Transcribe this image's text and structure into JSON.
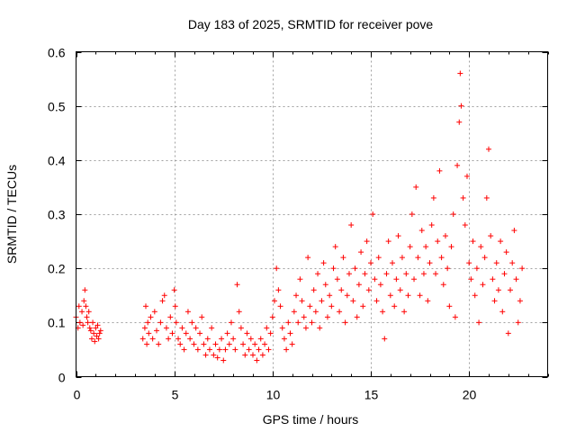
{
  "chart_data": {
    "type": "scatter",
    "title": "Day 183 of 2025, SRMTID for receiver pove",
    "xlabel": "GPS time / hours",
    "ylabel": "SRMTID / TECUs",
    "xlim": [
      0,
      24
    ],
    "ylim": [
      0,
      0.6
    ],
    "xticks": [
      0,
      5,
      10,
      15,
      20
    ],
    "yticks": [
      0,
      0.1,
      0.2,
      0.3,
      0.4,
      0.5,
      0.6
    ],
    "xtick_labels": [
      "0",
      "5",
      "10",
      "15",
      "20"
    ],
    "ytick_labels": [
      "0",
      "0.1",
      "0.2",
      "0.3",
      "0.4",
      "0.5",
      "0.6"
    ],
    "grid": true,
    "marker": "+",
    "series_color": "#ff0000",
    "series": [
      {
        "name": "SRMTID",
        "points": [
          [
            0.0,
            0.11
          ],
          [
            0.1,
            0.09
          ],
          [
            0.15,
            0.13
          ],
          [
            0.2,
            0.1
          ],
          [
            0.3,
            0.12
          ],
          [
            0.35,
            0.095
          ],
          [
            0.4,
            0.14
          ],
          [
            0.45,
            0.16
          ],
          [
            0.5,
            0.13
          ],
          [
            0.55,
            0.11
          ],
          [
            0.6,
            0.1
          ],
          [
            0.65,
            0.12
          ],
          [
            0.7,
            0.09
          ],
          [
            0.75,
            0.085
          ],
          [
            0.8,
            0.07
          ],
          [
            0.85,
            0.1
          ],
          [
            0.9,
            0.08
          ],
          [
            0.95,
            0.065
          ],
          [
            1.0,
            0.09
          ],
          [
            1.05,
            0.075
          ],
          [
            1.1,
            0.095
          ],
          [
            1.15,
            0.07
          ],
          [
            1.2,
            0.08
          ],
          [
            1.25,
            0.085
          ],
          [
            3.4,
            0.07
          ],
          [
            3.5,
            0.09
          ],
          [
            3.55,
            0.13
          ],
          [
            3.6,
            0.06
          ],
          [
            3.65,
            0.1
          ],
          [
            3.7,
            0.08
          ],
          [
            3.8,
            0.11
          ],
          [
            3.9,
            0.07
          ],
          [
            4.0,
            0.12
          ],
          [
            4.1,
            0.085
          ],
          [
            4.2,
            0.06
          ],
          [
            4.3,
            0.1
          ],
          [
            4.4,
            0.14
          ],
          [
            4.5,
            0.15
          ],
          [
            4.6,
            0.09
          ],
          [
            4.7,
            0.07
          ],
          [
            4.8,
            0.11
          ],
          [
            4.9,
            0.08
          ],
          [
            5.0,
            0.16
          ],
          [
            5.05,
            0.13
          ],
          [
            5.1,
            0.1
          ],
          [
            5.2,
            0.07
          ],
          [
            5.3,
            0.06
          ],
          [
            5.4,
            0.09
          ],
          [
            5.5,
            0.05
          ],
          [
            5.6,
            0.08
          ],
          [
            5.7,
            0.12
          ],
          [
            5.8,
            0.07
          ],
          [
            5.9,
            0.1
          ],
          [
            6.0,
            0.06
          ],
          [
            6.1,
            0.09
          ],
          [
            6.2,
            0.05
          ],
          [
            6.3,
            0.08
          ],
          [
            6.4,
            0.11
          ],
          [
            6.5,
            0.06
          ],
          [
            6.6,
            0.04
          ],
          [
            6.7,
            0.07
          ],
          [
            6.8,
            0.05
          ],
          [
            6.9,
            0.09
          ],
          [
            7.0,
            0.04
          ],
          [
            7.1,
            0.06
          ],
          [
            7.2,
            0.035
          ],
          [
            7.3,
            0.05
          ],
          [
            7.4,
            0.07
          ],
          [
            7.5,
            0.03
          ],
          [
            7.6,
            0.05
          ],
          [
            7.7,
            0.08
          ],
          [
            7.8,
            0.06
          ],
          [
            7.9,
            0.1
          ],
          [
            8.0,
            0.07
          ],
          [
            8.1,
            0.05
          ],
          [
            8.2,
            0.17
          ],
          [
            8.3,
            0.12
          ],
          [
            8.4,
            0.09
          ],
          [
            8.5,
            0.06
          ],
          [
            8.6,
            0.04
          ],
          [
            8.7,
            0.08
          ],
          [
            8.8,
            0.05
          ],
          [
            8.9,
            0.07
          ],
          [
            9.0,
            0.04
          ],
          [
            9.1,
            0.06
          ],
          [
            9.2,
            0.03
          ],
          [
            9.3,
            0.05
          ],
          [
            9.4,
            0.07
          ],
          [
            9.5,
            0.04
          ],
          [
            9.6,
            0.06
          ],
          [
            9.7,
            0.09
          ],
          [
            9.8,
            0.05
          ],
          [
            9.9,
            0.08
          ],
          [
            10.0,
            0.11
          ],
          [
            10.1,
            0.14
          ],
          [
            10.2,
            0.2
          ],
          [
            10.3,
            0.16
          ],
          [
            10.4,
            0.13
          ],
          [
            10.5,
            0.09
          ],
          [
            10.6,
            0.07
          ],
          [
            10.7,
            0.05
          ],
          [
            10.8,
            0.1
          ],
          [
            10.9,
            0.08
          ],
          [
            11.0,
            0.06
          ],
          [
            11.1,
            0.12
          ],
          [
            11.2,
            0.15
          ],
          [
            11.3,
            0.1
          ],
          [
            11.4,
            0.18
          ],
          [
            11.5,
            0.14
          ],
          [
            11.6,
            0.11
          ],
          [
            11.7,
            0.09
          ],
          [
            11.8,
            0.22
          ],
          [
            11.9,
            0.13
          ],
          [
            12.0,
            0.1
          ],
          [
            12.1,
            0.16
          ],
          [
            12.2,
            0.12
          ],
          [
            12.3,
            0.19
          ],
          [
            12.4,
            0.09
          ],
          [
            12.5,
            0.14
          ],
          [
            12.6,
            0.21
          ],
          [
            12.7,
            0.17
          ],
          [
            12.8,
            0.11
          ],
          [
            12.9,
            0.15
          ],
          [
            13.0,
            0.13
          ],
          [
            13.1,
            0.2
          ],
          [
            13.2,
            0.24
          ],
          [
            13.3,
            0.18
          ],
          [
            13.4,
            0.12
          ],
          [
            13.5,
            0.16
          ],
          [
            13.6,
            0.22
          ],
          [
            13.7,
            0.1
          ],
          [
            13.8,
            0.15
          ],
          [
            13.9,
            0.19
          ],
          [
            14.0,
            0.28
          ],
          [
            14.1,
            0.14
          ],
          [
            14.2,
            0.2
          ],
          [
            14.3,
            0.11
          ],
          [
            14.4,
            0.17
          ],
          [
            14.5,
            0.23
          ],
          [
            14.6,
            0.13
          ],
          [
            14.7,
            0.19
          ],
          [
            14.8,
            0.25
          ],
          [
            14.9,
            0.16
          ],
          [
            15.0,
            0.21
          ],
          [
            15.1,
            0.3
          ],
          [
            15.2,
            0.18
          ],
          [
            15.3,
            0.14
          ],
          [
            15.4,
            0.22
          ],
          [
            15.5,
            0.17
          ],
          [
            15.6,
            0.12
          ],
          [
            15.7,
            0.07
          ],
          [
            15.8,
            0.19
          ],
          [
            15.9,
            0.25
          ],
          [
            16.0,
            0.15
          ],
          [
            16.1,
            0.21
          ],
          [
            16.2,
            0.13
          ],
          [
            16.3,
            0.18
          ],
          [
            16.4,
            0.26
          ],
          [
            16.5,
            0.16
          ],
          [
            16.6,
            0.22
          ],
          [
            16.7,
            0.12
          ],
          [
            16.8,
            0.19
          ],
          [
            16.9,
            0.15
          ],
          [
            17.0,
            0.24
          ],
          [
            17.1,
            0.3
          ],
          [
            17.2,
            0.18
          ],
          [
            17.3,
            0.35
          ],
          [
            17.4,
            0.22
          ],
          [
            17.5,
            0.15
          ],
          [
            17.6,
            0.27
          ],
          [
            17.7,
            0.19
          ],
          [
            17.8,
            0.24
          ],
          [
            17.9,
            0.14
          ],
          [
            18.0,
            0.21
          ],
          [
            18.1,
            0.28
          ],
          [
            18.2,
            0.33
          ],
          [
            18.3,
            0.19
          ],
          [
            18.4,
            0.25
          ],
          [
            18.5,
            0.38
          ],
          [
            18.6,
            0.22
          ],
          [
            18.7,
            0.17
          ],
          [
            18.8,
            0.26
          ],
          [
            18.9,
            0.2
          ],
          [
            19.0,
            0.13
          ],
          [
            19.1,
            0.24
          ],
          [
            19.2,
            0.3
          ],
          [
            19.3,
            0.11
          ],
          [
            19.4,
            0.39
          ],
          [
            19.5,
            0.47
          ],
          [
            19.55,
            0.56
          ],
          [
            19.6,
            0.5
          ],
          [
            19.7,
            0.33
          ],
          [
            19.8,
            0.28
          ],
          [
            19.9,
            0.37
          ],
          [
            20.0,
            0.21
          ],
          [
            20.1,
            0.18
          ],
          [
            20.2,
            0.25
          ],
          [
            20.3,
            0.15
          ],
          [
            20.4,
            0.2
          ],
          [
            20.5,
            0.1
          ],
          [
            20.6,
            0.24
          ],
          [
            20.7,
            0.17
          ],
          [
            20.8,
            0.22
          ],
          [
            20.9,
            0.33
          ],
          [
            21.0,
            0.42
          ],
          [
            21.1,
            0.26
          ],
          [
            21.2,
            0.18
          ],
          [
            21.3,
            0.14
          ],
          [
            21.4,
            0.21
          ],
          [
            21.5,
            0.16
          ],
          [
            21.6,
            0.25
          ],
          [
            21.7,
            0.12
          ],
          [
            21.8,
            0.19
          ],
          [
            21.9,
            0.23
          ],
          [
            22.0,
            0.08
          ],
          [
            22.1,
            0.16
          ],
          [
            22.2,
            0.21
          ],
          [
            22.3,
            0.27
          ],
          [
            22.4,
            0.18
          ],
          [
            22.5,
            0.1
          ],
          [
            22.6,
            0.14
          ],
          [
            22.7,
            0.2
          ]
        ]
      }
    ]
  }
}
